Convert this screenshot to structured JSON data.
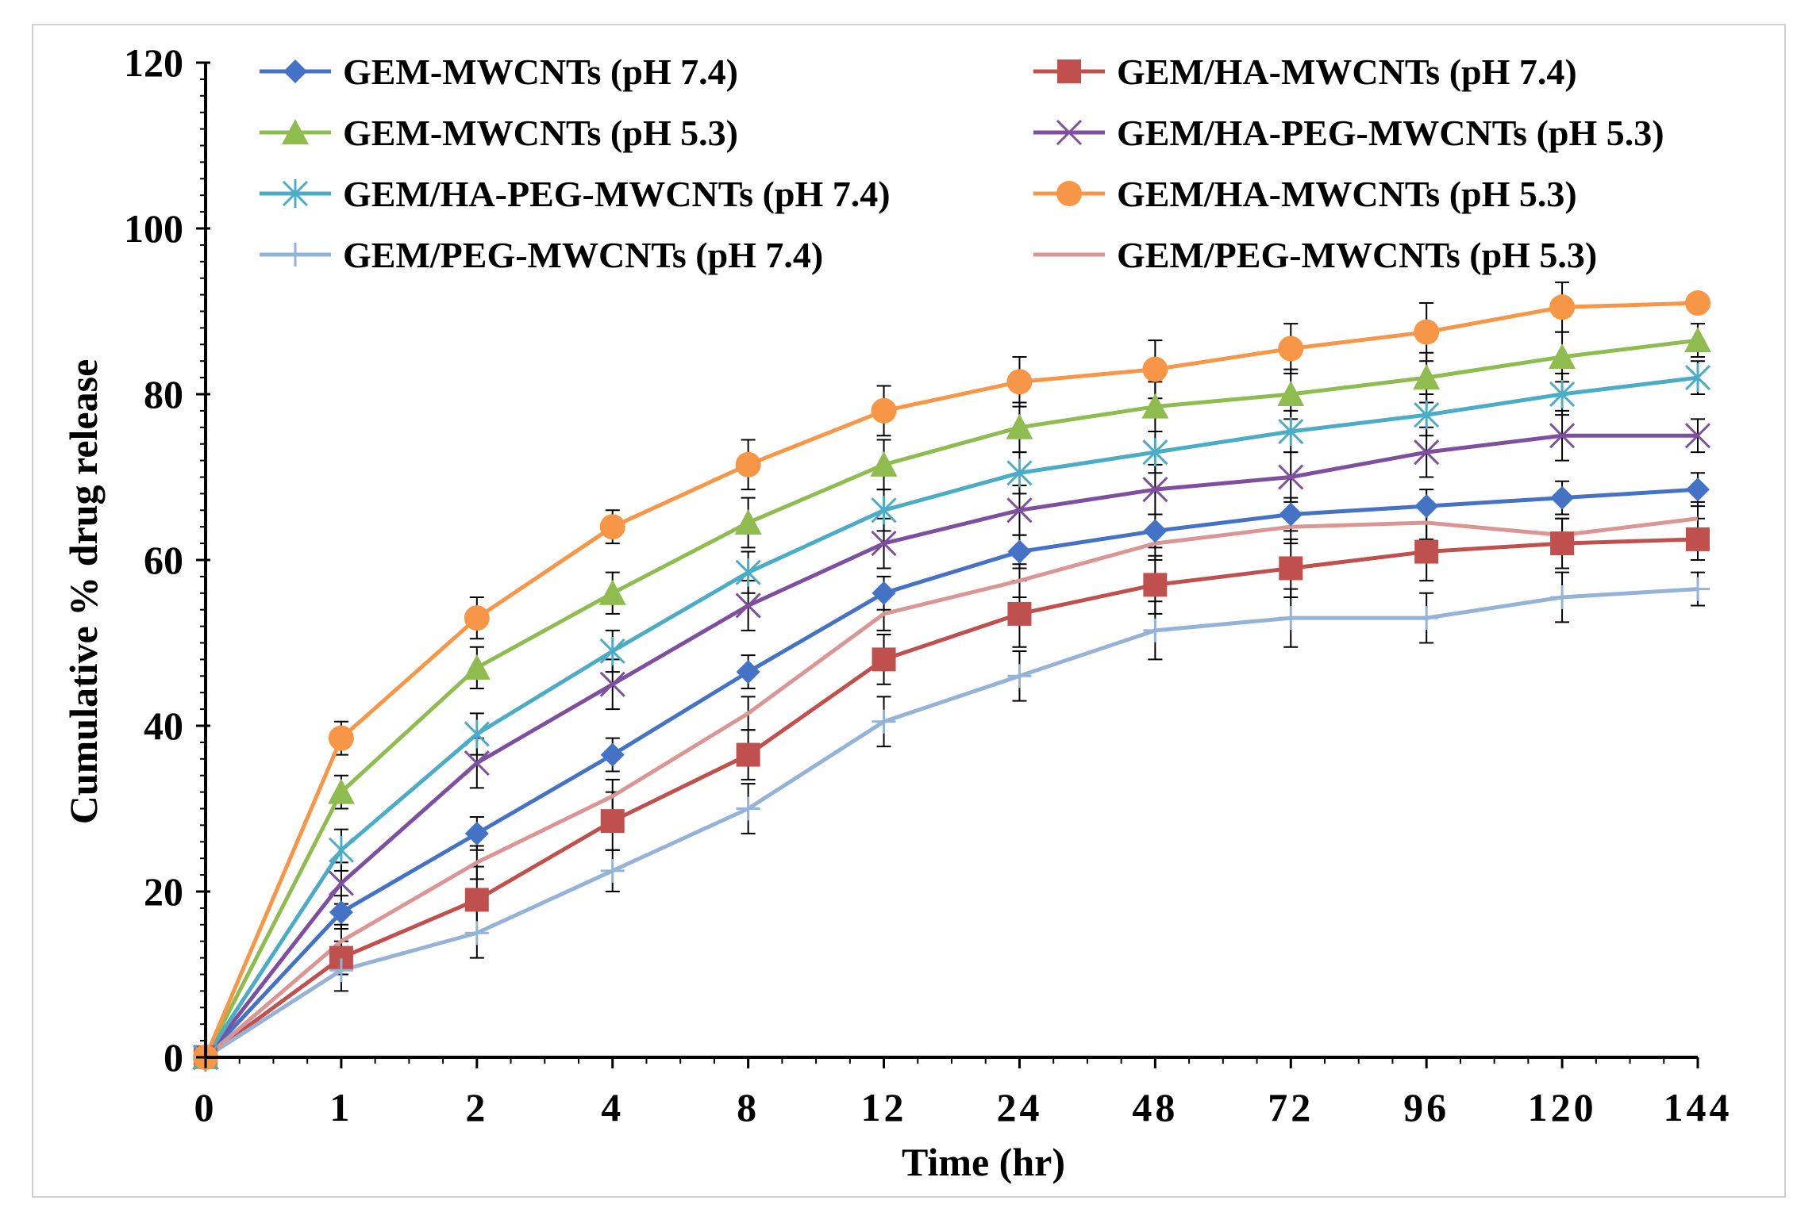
{
  "chart_data": {
    "type": "line",
    "title": "",
    "xlabel": "Time (hr)",
    "ylabel": "Cumulative % drug release",
    "categories": [
      "0",
      "1",
      "2",
      "4",
      "8",
      "12",
      "24",
      "48",
      "72",
      "96",
      "120",
      "144"
    ],
    "yticks": [
      "0",
      "20",
      "40",
      "60",
      "80",
      "100",
      "120"
    ],
    "ylim": [
      0,
      120
    ],
    "legend_position": "top",
    "series": [
      {
        "name": "GEM-MWCNTs (pH 7.4)",
        "color": "#4472c4",
        "marker": "diamond",
        "values": [
          0,
          17.5,
          27,
          36.5,
          46.5,
          56,
          61,
          63.5,
          65.5,
          66.5,
          67.5,
          68.5
        ],
        "errors": [
          0,
          2,
          2,
          2,
          2,
          2,
          2,
          2,
          2,
          2,
          2,
          2
        ]
      },
      {
        "name": "GEM/HA-MWCNTs (pH 7.4)",
        "color": "#c0504d",
        "marker": "square",
        "values": [
          0,
          12,
          19,
          28.5,
          36.5,
          48,
          53.5,
          57,
          59,
          61,
          62,
          62.5
        ],
        "errors": [
          0,
          2,
          4,
          3.5,
          3,
          3,
          4,
          3.5,
          3.5,
          3.5,
          3,
          2.5
        ]
      },
      {
        "name": "GEM-MWCNTs (pH 5.3)",
        "color": "#8fbc4f",
        "marker": "triangle",
        "values": [
          0,
          32,
          47,
          56,
          64.5,
          71.5,
          76,
          78.5,
          80,
          82,
          84.5,
          86.5
        ],
        "errors": [
          0,
          2,
          2.5,
          2.5,
          3,
          3,
          3,
          3,
          3,
          3,
          3,
          2
        ]
      },
      {
        "name": "GEM/HA-PEG-MWCNTs (pH 5.3)",
        "color": "#7f4f9f",
        "marker": "x",
        "values": [
          0,
          21,
          35.5,
          45,
          54.5,
          62,
          66,
          68.5,
          70,
          73,
          75,
          75
        ],
        "errors": [
          0,
          2.5,
          3,
          3,
          3,
          3,
          3,
          3,
          3,
          3,
          3,
          2
        ]
      },
      {
        "name": "GEM/HA-PEG-MWCNTs (pH 7.4)",
        "color": "#4bacc6",
        "marker": "star",
        "values": [
          0,
          25,
          39,
          49,
          58.5,
          66,
          70.5,
          73,
          75.5,
          77.5,
          80,
          82
        ],
        "errors": [
          0,
          2.5,
          2.5,
          2.5,
          2.5,
          2.5,
          2.5,
          2.5,
          2.5,
          2.5,
          2.5,
          2
        ]
      },
      {
        "name": "GEM/HA-MWCNTs (pH 5.3)",
        "color": "#f79646",
        "marker": "circle",
        "values": [
          0,
          38.5,
          53,
          64,
          71.5,
          78,
          81.5,
          83,
          85.5,
          87.5,
          90.5,
          91
        ],
        "errors": [
          0,
          2,
          2.5,
          2,
          3,
          3,
          3,
          3.5,
          3,
          3.5,
          3,
          1
        ]
      },
      {
        "name": "GEM/PEG-MWCNTs (pH 7.4)",
        "color": "#95b3d7",
        "marker": "plus",
        "values": [
          0,
          10.5,
          15,
          22.5,
          30,
          40.5,
          46,
          51.5,
          53,
          53,
          55.5,
          56.5
        ],
        "errors": [
          0,
          2.5,
          3,
          2.5,
          3,
          3,
          3,
          3.5,
          3.5,
          3,
          3,
          2
        ]
      },
      {
        "name": "GEM/PEG-MWCNTs (pH 5.3)",
        "color": "#d99694",
        "marker": "none",
        "values": [
          0,
          14,
          23.5,
          31.5,
          41.5,
          53.5,
          57.5,
          62,
          64,
          64.5,
          63,
          65
        ],
        "errors": [
          0,
          2,
          2,
          2,
          2,
          2,
          2,
          2,
          2,
          2,
          2,
          2
        ]
      }
    ]
  }
}
